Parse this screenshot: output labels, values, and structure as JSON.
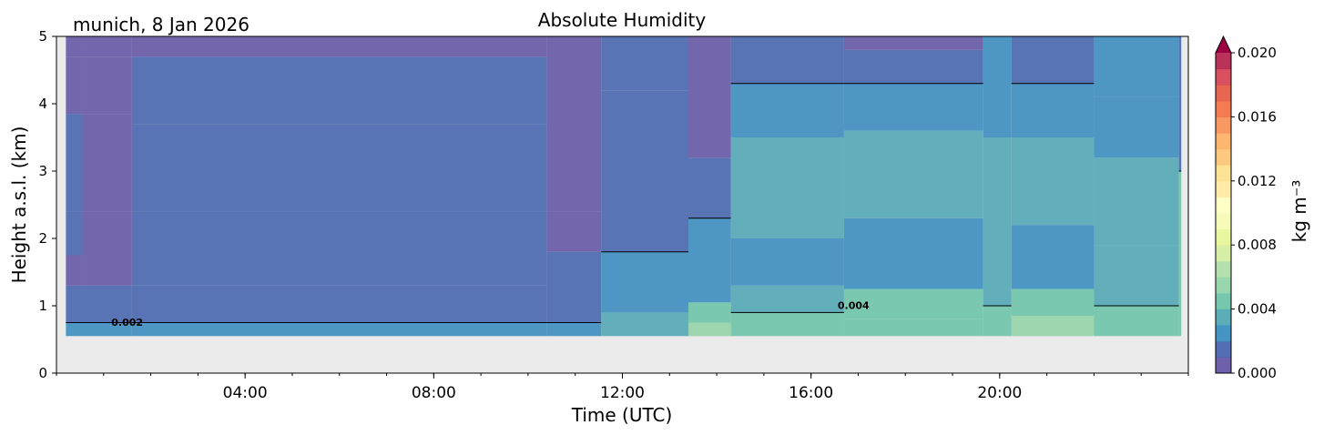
{
  "chart_data": {
    "type": "heatmap",
    "title": "Absolute Humidity",
    "location_label": "munich, 8 Jan 2026",
    "xlabel": "Time (UTC)",
    "ylabel": "Height a.s.l. (km)",
    "xlim_hours": [
      0,
      24
    ],
    "ylim_km": [
      0,
      5
    ],
    "x_ticks": [
      {
        "hour": 4,
        "label": "04:00"
      },
      {
        "hour": 8,
        "label": "08:00"
      },
      {
        "hour": 12,
        "label": "12:00"
      },
      {
        "hour": 16,
        "label": "16:00"
      },
      {
        "hour": 20,
        "label": "20:00"
      }
    ],
    "y_ticks": [
      {
        "value": 0,
        "label": "0"
      },
      {
        "value": 1,
        "label": "1"
      },
      {
        "value": 2,
        "label": "2"
      },
      {
        "value": 3,
        "label": "3"
      },
      {
        "value": 4,
        "label": "4"
      },
      {
        "value": 5,
        "label": "5"
      }
    ],
    "data_bottom_km": 0.55,
    "missing_color": "#ebebeb",
    "colorbar": {
      "label": "kg m⁻³",
      "range": [
        0.0,
        0.02
      ],
      "extend": "max",
      "ticks": [
        {
          "value": 0.0,
          "label": "0.000"
        },
        {
          "value": 0.004,
          "label": "0.004"
        },
        {
          "value": 0.008,
          "label": "0.008"
        },
        {
          "value": 0.012,
          "label": "0.012"
        },
        {
          "value": 0.016,
          "label": "0.016"
        },
        {
          "value": 0.02,
          "label": "0.020"
        }
      ],
      "colors": [
        "#5e4fa2",
        "#3f5fab",
        "#3288bd",
        "#4aa3b3",
        "#66c2a5",
        "#8fd1a4",
        "#abdda4",
        "#d1ec9c",
        "#e6f598",
        "#f6fbb2",
        "#ffffbf",
        "#fee8a0",
        "#fee08b",
        "#fdc272",
        "#fdae61",
        "#f88d52",
        "#f46d43",
        "#e4553f",
        "#d53e4f",
        "#b01c48",
        "#9e0142"
      ]
    },
    "contour_labels": [
      {
        "text": "0.002",
        "hour": 1.5,
        "km": 0.7
      },
      {
        "text": "0.004",
        "hour": 16.9,
        "km": 0.95
      }
    ],
    "contour_levels": [
      0.002,
      0.004
    ],
    "columns": [
      {
        "start": 0.2,
        "end": 0.55,
        "bands": [
          [
            0.55,
            0.75,
            0.0028
          ],
          [
            0.75,
            1.3,
            0.0019
          ],
          [
            1.3,
            1.75,
            0.0007
          ],
          [
            1.75,
            2.4,
            0.0016
          ],
          [
            2.4,
            3.85,
            0.0012
          ],
          [
            3.85,
            4.7,
            0.0006
          ],
          [
            4.7,
            5.0,
            0.0003
          ]
        ]
      },
      {
        "start": 0.55,
        "end": 1.6,
        "bands": [
          [
            0.55,
            0.75,
            0.0022
          ],
          [
            0.75,
            1.3,
            0.0011
          ],
          [
            1.3,
            1.75,
            0.0002
          ],
          [
            1.75,
            2.4,
            0.0009
          ],
          [
            2.4,
            3.85,
            0.0008
          ],
          [
            3.85,
            4.7,
            0.0003
          ],
          [
            4.7,
            5.0,
            0.0001
          ]
        ]
      },
      {
        "start": 1.6,
        "end": 10.4,
        "bands": [
          [
            0.55,
            0.75,
            0.0026
          ],
          [
            0.75,
            1.3,
            0.0018
          ],
          [
            1.3,
            1.75,
            0.0014
          ],
          [
            1.75,
            2.4,
            0.0015
          ],
          [
            2.4,
            3.7,
            0.0016
          ],
          [
            3.7,
            4.7,
            0.001
          ],
          [
            4.7,
            5.0,
            0.0006
          ]
        ]
      },
      {
        "start": 10.4,
        "end": 11.55,
        "bands": [
          [
            0.55,
            0.75,
            0.0021
          ],
          [
            0.75,
            1.8,
            0.0013
          ],
          [
            1.8,
            2.4,
            0.0004
          ],
          [
            2.4,
            4.0,
            0.0009
          ],
          [
            4.0,
            5.0,
            0.0004
          ]
        ]
      },
      {
        "start": 11.55,
        "end": 13.4,
        "bands": [
          [
            0.55,
            0.9,
            0.003
          ],
          [
            0.9,
            1.8,
            0.0023
          ],
          [
            1.8,
            2.5,
            0.0017
          ],
          [
            2.5,
            4.2,
            0.0016
          ],
          [
            4.2,
            5.0,
            0.0012
          ]
        ]
      },
      {
        "start": 13.4,
        "end": 14.3,
        "bands": [
          [
            0.55,
            0.75,
            0.005
          ],
          [
            0.75,
            1.05,
            0.004
          ],
          [
            1.05,
            2.3,
            0.0022
          ],
          [
            2.3,
            3.2,
            0.0014
          ],
          [
            3.2,
            5.0,
            0.0006
          ]
        ]
      },
      {
        "start": 14.3,
        "end": 16.7,
        "bands": [
          [
            0.55,
            0.9,
            0.0044
          ],
          [
            0.9,
            1.3,
            0.0036
          ],
          [
            1.3,
            2.0,
            0.0028
          ],
          [
            2.0,
            3.5,
            0.003
          ],
          [
            3.5,
            4.3,
            0.0023
          ],
          [
            4.3,
            5.0,
            0.0016
          ]
        ]
      },
      {
        "start": 16.7,
        "end": 19.65,
        "bands": [
          [
            0.55,
            0.8,
            0.0048
          ],
          [
            0.8,
            1.25,
            0.004
          ],
          [
            1.25,
            2.3,
            0.0027
          ],
          [
            2.3,
            3.6,
            0.0031
          ],
          [
            3.6,
            4.3,
            0.0021
          ],
          [
            4.3,
            4.8,
            0.0011
          ],
          [
            4.8,
            5.0,
            0.0007
          ]
        ]
      },
      {
        "start": 19.65,
        "end": 20.25,
        "bands": [
          [
            0.55,
            1.0,
            0.0046
          ],
          [
            1.0,
            2.0,
            0.0033
          ],
          [
            2.0,
            3.5,
            0.0032
          ],
          [
            3.5,
            5.0,
            0.0022
          ]
        ]
      },
      {
        "start": 20.25,
        "end": 22.0,
        "bands": [
          [
            0.55,
            0.85,
            0.005
          ],
          [
            0.85,
            1.25,
            0.004
          ],
          [
            1.25,
            2.2,
            0.0026
          ],
          [
            2.2,
            3.5,
            0.0032
          ],
          [
            3.5,
            4.3,
            0.0021
          ],
          [
            4.3,
            5.0,
            0.0012
          ]
        ]
      },
      {
        "start": 22.0,
        "end": 23.8,
        "bands": [
          [
            0.55,
            1.0,
            0.0042
          ],
          [
            1.0,
            1.9,
            0.0036
          ],
          [
            1.9,
            3.2,
            0.0031
          ],
          [
            3.2,
            4.1,
            0.0027
          ],
          [
            4.1,
            5.0,
            0.0021
          ]
        ]
      },
      {
        "start": 23.8,
        "end": 23.85,
        "bands": [
          [
            0.55,
            3.0,
            0.004
          ],
          [
            3.0,
            5.0,
            0.0016
          ]
        ]
      }
    ]
  }
}
